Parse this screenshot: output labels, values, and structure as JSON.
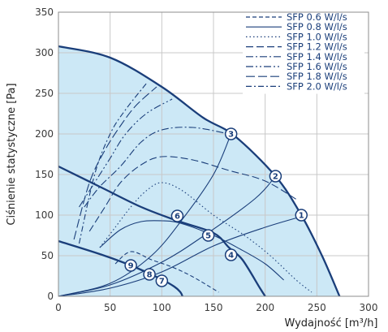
{
  "chart_data": {
    "type": "line",
    "title": "",
    "xlabel": "Wydajność [m³/h]",
    "ylabel": "Ciśnienie statystyczne [Pa]",
    "xlim": [
      0,
      300
    ],
    "ylim": [
      0,
      350
    ],
    "x_ticks": [
      "0",
      "50",
      "100",
      "150",
      "200",
      "250",
      "300"
    ],
    "y_ticks": [
      "0",
      "50",
      "100",
      "150",
      "200",
      "250",
      "300",
      "350"
    ],
    "grid": true,
    "legend_position": "top-right",
    "colors": {
      "line": "#1a3e7a",
      "fill": "#cce8f6",
      "grid": "#c8c8c8"
    },
    "fan_curves": [
      {
        "points": [
          [
            0,
            308
          ],
          [
            50,
            294
          ],
          [
            100,
            258
          ],
          [
            140,
            220
          ],
          [
            170,
            198
          ],
          [
            210,
            148
          ],
          [
            235,
            100
          ],
          [
            255,
            50
          ],
          [
            272,
            0
          ]
        ]
      },
      {
        "points": [
          [
            0,
            160
          ],
          [
            40,
            135
          ],
          [
            80,
            110
          ],
          [
            115,
            93
          ],
          [
            150,
            78
          ],
          [
            165,
            60
          ],
          [
            178,
            45
          ],
          [
            195,
            10
          ],
          [
            200,
            0
          ]
        ]
      },
      {
        "points": [
          [
            0,
            68
          ],
          [
            40,
            52
          ],
          [
            70,
            38
          ],
          [
            98,
            22
          ],
          [
            112,
            12
          ],
          [
            118,
            5
          ],
          [
            120,
            0
          ]
        ]
      }
    ],
    "sfp_series": [
      {
        "name": "SFP 0.6 W/l/s",
        "points": [
          [
            55,
            40
          ],
          [
            70,
            55
          ],
          [
            90,
            45
          ],
          [
            110,
            36
          ],
          [
            130,
            24
          ],
          [
            155,
            5
          ]
        ]
      },
      {
        "name": "SFP 0.8 W/l/s",
        "points": [
          [
            40,
            60
          ],
          [
            60,
            82
          ],
          [
            80,
            92
          ],
          [
            100,
            93
          ],
          [
            118,
            90
          ],
          [
            150,
            75
          ],
          [
            176,
            58
          ],
          [
            200,
            40
          ],
          [
            218,
            20
          ]
        ]
      },
      {
        "name": "SFP 1.0 W/l/s",
        "points": [
          [
            40,
            60
          ],
          [
            55,
            85
          ],
          [
            70,
            110
          ],
          [
            85,
            130
          ],
          [
            100,
            140
          ],
          [
            120,
            130
          ],
          [
            150,
            100
          ],
          [
            180,
            75
          ],
          [
            205,
            50
          ],
          [
            230,
            20
          ],
          [
            245,
            5
          ]
        ]
      },
      {
        "name": "SFP 1.2 W/l/s",
        "points": [
          [
            30,
            80
          ],
          [
            45,
            110
          ],
          [
            60,
            140
          ],
          [
            80,
            162
          ],
          [
            100,
            172
          ],
          [
            130,
            168
          ],
          [
            165,
            155
          ],
          [
            200,
            142
          ],
          [
            232,
            118
          ]
        ]
      },
      {
        "name": "SFP 1.4 W/l/s",
        "points": [
          [
            25,
            110
          ],
          [
            40,
            135
          ],
          [
            60,
            160
          ],
          [
            80,
            190
          ],
          [
            100,
            205
          ],
          [
            130,
            208
          ],
          [
            165,
            200
          ]
        ]
      },
      {
        "name": "SFP 1.6 W/l/s",
        "points": [
          [
            20,
            110
          ],
          [
            35,
            140
          ],
          [
            50,
            170
          ],
          [
            65,
            200
          ],
          [
            85,
            225
          ],
          [
            110,
            243
          ]
        ]
      },
      {
        "name": "SFP 1.8 W/l/s",
        "points": [
          [
            15,
            70
          ],
          [
            30,
            140
          ],
          [
            45,
            180
          ],
          [
            60,
            210
          ],
          [
            75,
            235
          ],
          [
            95,
            258
          ]
        ]
      },
      {
        "name": "SFP 2.0 W/l/s",
        "points": [
          [
            20,
            65
          ],
          [
            35,
            150
          ],
          [
            50,
            200
          ],
          [
            65,
            230
          ],
          [
            85,
            262
          ]
        ]
      }
    ],
    "duct_curves": [
      {
        "points": [
          [
            0,
            0
          ],
          [
            50,
            10
          ],
          [
            100,
            30
          ],
          [
            150,
            62
          ],
          [
            200,
            85
          ],
          [
            240,
            100
          ]
        ]
      },
      {
        "points": [
          [
            0,
            0
          ],
          [
            50,
            14
          ],
          [
            100,
            42
          ],
          [
            140,
            74
          ],
          [
            190,
            120
          ],
          [
            210,
            148
          ]
        ]
      },
      {
        "points": [
          [
            0,
            0
          ],
          [
            50,
            16
          ],
          [
            90,
            50
          ],
          [
            120,
            95
          ],
          [
            150,
            150
          ],
          [
            167,
            200
          ]
        ]
      }
    ],
    "operating_points": [
      {
        "label": "1",
        "x": 235,
        "y": 100
      },
      {
        "label": "2",
        "x": 210,
        "y": 148
      },
      {
        "label": "3",
        "x": 167,
        "y": 200
      },
      {
        "label": "4",
        "x": 167,
        "y": 51
      },
      {
        "label": "5",
        "x": 145,
        "y": 75
      },
      {
        "label": "6",
        "x": 115,
        "y": 99
      },
      {
        "label": "7",
        "x": 100,
        "y": 19
      },
      {
        "label": "8",
        "x": 88,
        "y": 27
      },
      {
        "label": "9",
        "x": 70,
        "y": 38
      }
    ]
  }
}
